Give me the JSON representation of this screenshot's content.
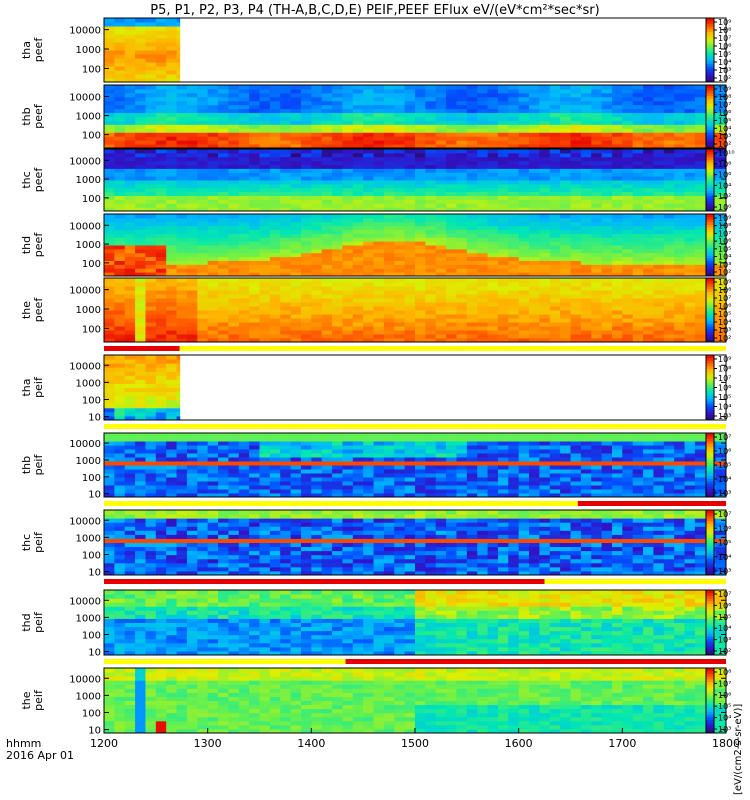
{
  "chart_data": {
    "type": "heatmap",
    "title": "P5, P1, P2, P3, P4 (TH-A,B,C,D,E) PEIF,PEEF EFlux eV/(eV*cm²*sec*sr)",
    "x_axis": {
      "prefix_lines": [
        "hhmm",
        "2016 Apr 01"
      ],
      "range": [
        1200,
        1800
      ],
      "ticks": [
        "1200",
        "1300",
        "1400",
        "1500",
        "1600",
        "1700",
        "1800"
      ]
    },
    "colorbar_unit": "[eV/(cm2-s-sr-eV)]",
    "palette": [
      "#2a0a6e",
      "#3214c8",
      "#0050ff",
      "#00b4ff",
      "#00e6b4",
      "#64f050",
      "#dcf000",
      "#ffb400",
      "#ff5000",
      "#e60000"
    ],
    "panels": [
      {
        "id": "tha-peef",
        "label": [
          "tha",
          "peef"
        ],
        "y_ticks": [
          "10000",
          "1000",
          "100"
        ],
        "y_log": true,
        "cbar": [
          "10⁹",
          "10⁸",
          "10⁷",
          "10⁶",
          "10⁵",
          "10⁴",
          "10³",
          "10²"
        ],
        "data_end": 1273,
        "style": "tha_e"
      },
      {
        "id": "thb-peef",
        "label": [
          "thb",
          "peef"
        ],
        "y_ticks": [
          "10000",
          "1000",
          "100"
        ],
        "y_log": true,
        "cbar": [
          "10⁹",
          "10⁸",
          "10⁷",
          "10⁶",
          "10⁵",
          "10⁴",
          "10³",
          "10²"
        ],
        "data_end": 1800,
        "style": "thb_e"
      },
      {
        "id": "thc-peef",
        "label": [
          "thc",
          "peef"
        ],
        "y_ticks": [
          "10000",
          "1000",
          "100"
        ],
        "y_log": true,
        "cbar": [
          "10¹⁰",
          "10⁸",
          "10⁶",
          "10⁴",
          "10²",
          "10⁰"
        ],
        "data_end": 1800,
        "style": "thc_e"
      },
      {
        "id": "thd-peef",
        "label": [
          "thd",
          "peef"
        ],
        "y_ticks": [
          "10000",
          "1000",
          "100"
        ],
        "y_log": true,
        "cbar": [
          "10⁹",
          "10⁸",
          "10⁷",
          "10⁶",
          "10⁵",
          "10⁴",
          "10³",
          "10²"
        ],
        "data_end": 1800,
        "style": "thd_e"
      },
      {
        "id": "the-peef",
        "label": [
          "the",
          "peef"
        ],
        "y_ticks": [
          "10000",
          "1000",
          "100"
        ],
        "y_log": true,
        "cbar": [
          "10⁹",
          "10⁸",
          "10⁷",
          "10⁶",
          "10⁵",
          "10⁴",
          "10³",
          "10²"
        ],
        "data_end": 1800,
        "style": "the_e"
      },
      {
        "id": "tha-peif",
        "label": [
          "tha",
          "peif"
        ],
        "y_ticks": [
          "10000",
          "1000",
          "100",
          "10"
        ],
        "y_log": true,
        "cbar": [
          "10⁹",
          "10⁸",
          "10⁷",
          "10⁶",
          "10⁵",
          "10⁴",
          "10³"
        ],
        "data_end": 1273,
        "style": "tha_i"
      },
      {
        "id": "thb-peif",
        "label": [
          "thb",
          "peif"
        ],
        "y_ticks": [
          "10000",
          "1000",
          "100",
          "10"
        ],
        "y_log": true,
        "cbar": [
          "10⁷",
          "10⁶",
          "10⁵",
          "10⁴",
          "10³"
        ],
        "data_end": 1800,
        "style": "thb_i"
      },
      {
        "id": "thc-peif",
        "label": [
          "thc",
          "peif"
        ],
        "y_ticks": [
          "10000",
          "1000",
          "100",
          "10"
        ],
        "y_log": true,
        "cbar": [
          "10⁷",
          "10⁶",
          "10⁵",
          "10⁴",
          "10³"
        ],
        "data_end": 1800,
        "style": "thc_i"
      },
      {
        "id": "thd-peif",
        "label": [
          "thd",
          "peif"
        ],
        "y_ticks": [
          "10000",
          "1000",
          "100",
          "10"
        ],
        "y_log": true,
        "cbar": [
          "10⁷",
          "10⁶",
          "10⁵",
          "10⁴",
          "10³",
          "10²"
        ],
        "data_end": 1800,
        "style": "thd_i"
      },
      {
        "id": "the-peif",
        "label": [
          "the",
          "peif"
        ],
        "y_ticks": [
          "10000",
          "1000",
          "100",
          "10"
        ],
        "y_log": true,
        "cbar": [
          "10⁸",
          "10⁷",
          "10⁶",
          "10⁵",
          "10⁴",
          "10³"
        ],
        "data_end": 1800,
        "style": "the_i"
      }
    ],
    "mode_bars": [
      {
        "after": "the-peef",
        "segments": [
          {
            "from": 1200,
            "to": 1273,
            "color": "#e60000"
          },
          {
            "from": 1273,
            "to": 1800,
            "color": "#ffff00"
          }
        ]
      },
      {
        "after": "tha-peif",
        "segments": [
          {
            "from": 1200,
            "to": 1800,
            "color": "#ffff00"
          }
        ]
      },
      {
        "after": "thb-peif",
        "segments": [
          {
            "from": 1200,
            "to": 1657,
            "color": "#ffff00"
          },
          {
            "from": 1657,
            "to": 1800,
            "color": "#e60000"
          }
        ]
      },
      {
        "after": "thc-peif",
        "segments": [
          {
            "from": 1200,
            "to": 1625,
            "color": "#e60000"
          },
          {
            "from": 1625,
            "to": 1800,
            "color": "#ffff00"
          }
        ]
      },
      {
        "after": "thd-peif",
        "segments": [
          {
            "from": 1200,
            "to": 1433,
            "color": "#ffff00"
          },
          {
            "from": 1433,
            "to": 1800,
            "color": "#e60000"
          }
        ]
      }
    ]
  }
}
